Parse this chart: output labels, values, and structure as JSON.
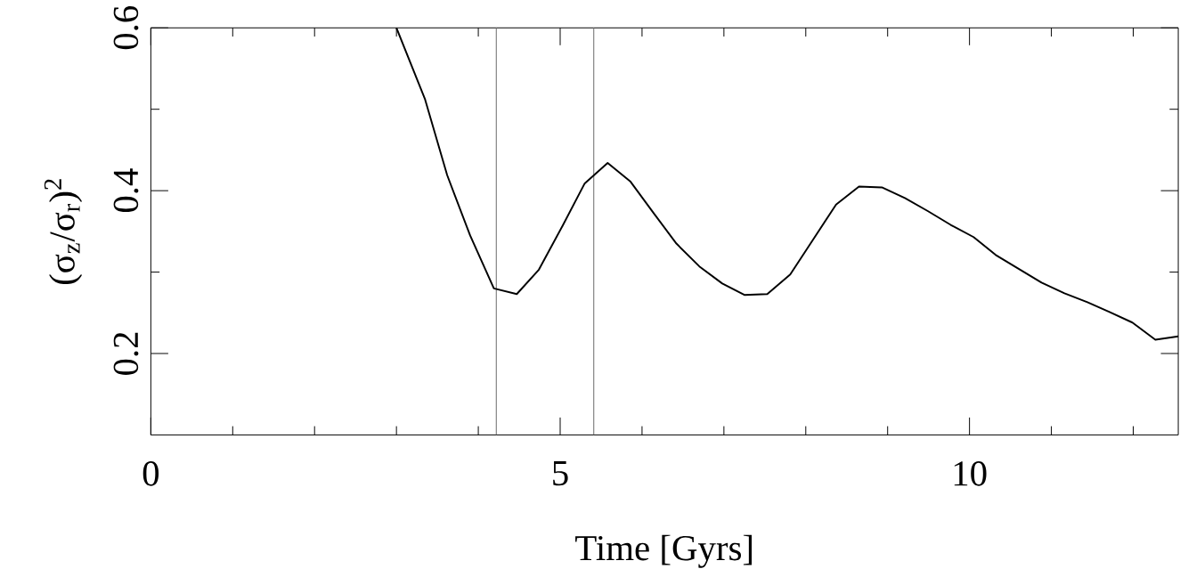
{
  "chart_data": {
    "type": "line",
    "xlabel": "Time [Gyrs]",
    "ylabel": "(σ$_{z}$/σ$_{r}$)$^{2}$",
    "x": [
      3.0,
      3.35,
      3.62,
      3.9,
      4.19,
      4.47,
      4.74,
      5.03,
      5.3,
      5.58,
      5.86,
      6.13,
      6.42,
      6.7,
      6.98,
      7.25,
      7.53,
      7.81,
      8.09,
      8.37,
      8.65,
      8.93,
      9.21,
      9.49,
      9.77,
      10.05,
      10.32,
      10.6,
      10.88,
      11.16,
      11.44,
      11.71,
      11.99,
      12.27,
      12.55
    ],
    "values": [
      0.6,
      0.512,
      0.419,
      0.345,
      0.28,
      0.273,
      0.303,
      0.357,
      0.409,
      0.434,
      0.411,
      0.374,
      0.335,
      0.307,
      0.286,
      0.272,
      0.273,
      0.297,
      0.34,
      0.383,
      0.405,
      0.404,
      0.391,
      0.375,
      0.358,
      0.343,
      0.321,
      0.304,
      0.287,
      0.274,
      0.263,
      0.251,
      0.238,
      0.217,
      0.221
    ],
    "color": "#000000",
    "marker": "none",
    "line_style": "solid",
    "xlim": [
      0,
      12.55
    ],
    "ylim": [
      0.1,
      0.6
    ],
    "xticks": [
      0,
      {
        "value": 1,
        "label": null
      },
      {
        "value": 2,
        "label": null
      },
      {
        "value": 3,
        "label": null
      },
      {
        "value": 4,
        "label": null
      },
      5,
      {
        "value": 6,
        "label": null
      },
      {
        "value": 7,
        "label": null
      },
      {
        "value": 8,
        "label": null
      },
      {
        "value": 9,
        "label": null
      },
      10,
      {
        "value": 11,
        "label": null
      },
      {
        "value": 12,
        "label": null
      }
    ],
    "yticks": [
      0.2,
      {
        "value": 0.3,
        "label": null
      },
      0.4,
      {
        "value": 0.5,
        "label": null
      },
      0.6
    ],
    "ref_lines": [
      {
        "axis": "x",
        "value": 4.22,
        "color": "#808080"
      },
      {
        "axis": "x",
        "value": 5.41,
        "color": "#808080"
      }
    ]
  }
}
